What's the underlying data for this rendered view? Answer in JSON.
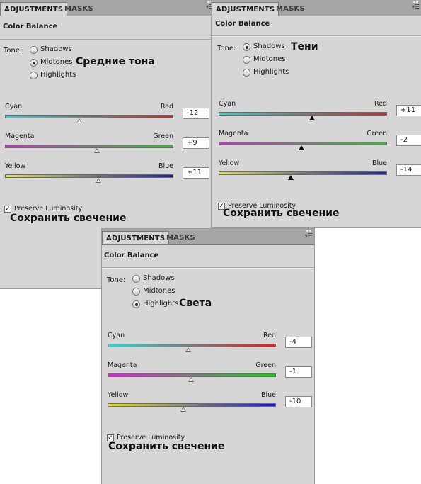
{
  "panels": {
    "midtones": {
      "tabs": {
        "adjustments": "ADJUSTMENTS",
        "masks": "MASKS"
      },
      "title": "Color Balance",
      "tone_label": "Tone:",
      "tones": [
        "Shadows",
        "Midtones",
        "Highlights"
      ],
      "selected_tone": "Midtones",
      "annotation": "Средние тона",
      "sliders": [
        {
          "left": "Cyan",
          "right": "Red",
          "value": "-12",
          "position": 0.44
        },
        {
          "left": "Magenta",
          "right": "Green",
          "value": "+9",
          "position": 0.545
        },
        {
          "left": "Yellow",
          "right": "Blue",
          "value": "+11",
          "position": 0.555
        }
      ],
      "preserve_label": "Preserve Luminosity",
      "preserve_checked": true,
      "preserve_annotation": "Сохранить свечение"
    },
    "shadows": {
      "tabs": {
        "adjustments": "ADJUSTMENTS",
        "masks": "MASKS"
      },
      "title": "Color Balance",
      "tone_label": "Tone:",
      "tones": [
        "Shadows",
        "Midtones",
        "Highlights"
      ],
      "selected_tone": "Shadows",
      "annotation": "Тени",
      "sliders": [
        {
          "left": "Cyan",
          "right": "Red",
          "value": "+11",
          "position": 0.555
        },
        {
          "left": "Magenta",
          "right": "Green",
          "value": "-2",
          "position": 0.49
        },
        {
          "left": "Yellow",
          "right": "Blue",
          "value": "-14",
          "position": 0.43
        }
      ],
      "preserve_label": "Preserve Luminosity",
      "preserve_checked": true,
      "preserve_annotation": "Сохранить свечение"
    },
    "highlights": {
      "tabs": {
        "adjustments": "ADJUSTMENTS",
        "masks": "MASKS"
      },
      "title": "Color Balance",
      "tone_label": "Tone:",
      "tones": [
        "Shadows",
        "Midtones",
        "Highlights"
      ],
      "selected_tone": "Highlights",
      "annotation": "Света",
      "sliders": [
        {
          "left": "Cyan",
          "right": "Red",
          "value": "-4",
          "position": 0.48
        },
        {
          "left": "Magenta",
          "right": "Green",
          "value": "-1",
          "position": 0.495
        },
        {
          "left": "Yellow",
          "right": "Blue",
          "value": "-10",
          "position": 0.45
        }
      ],
      "preserve_label": "Preserve Luminosity",
      "preserve_checked": true,
      "preserve_annotation": "Сохранить свечение"
    }
  },
  "icons": {
    "panel_menu": "panel-menu-icon",
    "collapse": "collapse-arrows-icon",
    "radio": "radio-button",
    "checkbox": "checkbox"
  },
  "colors": {
    "panel_bg": "#d6d6d6",
    "tabbar_bg": "#a6a6a6",
    "cyan": "#2ed4d4",
    "red": "#d42525",
    "magenta": "#d626d6",
    "green": "#20c820",
    "yellow": "#e6e62a",
    "blue": "#1a1ad2"
  }
}
